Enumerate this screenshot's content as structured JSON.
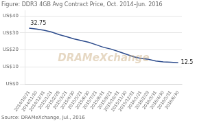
{
  "chart_data": {
    "type": "line",
    "title": "Figure: DDR3 4GB Avg Contract Price, Oct. 2014–Jun. 2016",
    "source": "Source: DRAMeXchange, Jul., 2016",
    "watermark": "DRAMeXchange",
    "categories": [
      "2014/10/21",
      "2014/11/10",
      "2014/12/31",
      "2015/1/21",
      "2015/2/28",
      "2015/3/21",
      "2015/4/30",
      "2015/5/21",
      "2015/6/30",
      "2015/7/21",
      "2015/8/31",
      "2015/9/21",
      "2015/10/31",
      "2015/11/30",
      "2015/12/31",
      "2016/1/21",
      "2016/2/29",
      "2016/3/31",
      "2016/4/30",
      "2016/5/31",
      "2016/6/30"
    ],
    "values": [
      32.75,
      32.2,
      31.5,
      30.5,
      29.0,
      27.8,
      26.5,
      25.5,
      24.5,
      23.0,
      21.5,
      20.5,
      19.0,
      17.5,
      16.0,
      15.0,
      14.5,
      13.5,
      13.0,
      12.75,
      12.5
    ],
    "color": "#2b4a8b",
    "ylim": [
      0,
      43
    ],
    "yticks": [
      {
        "value": 0,
        "label": "US$0"
      },
      {
        "value": 10,
        "label": "US$10"
      },
      {
        "value": 20,
        "label": "US$20"
      },
      {
        "value": 30,
        "label": "US$30"
      },
      {
        "value": 40,
        "label": "US$40"
      }
    ],
    "grid": true,
    "annotations": [
      {
        "text": "32.75",
        "x": "2014/10/21",
        "y": 32.75
      },
      {
        "text": "12.5",
        "x": "2016/6/30",
        "y": 12.5
      }
    ]
  }
}
